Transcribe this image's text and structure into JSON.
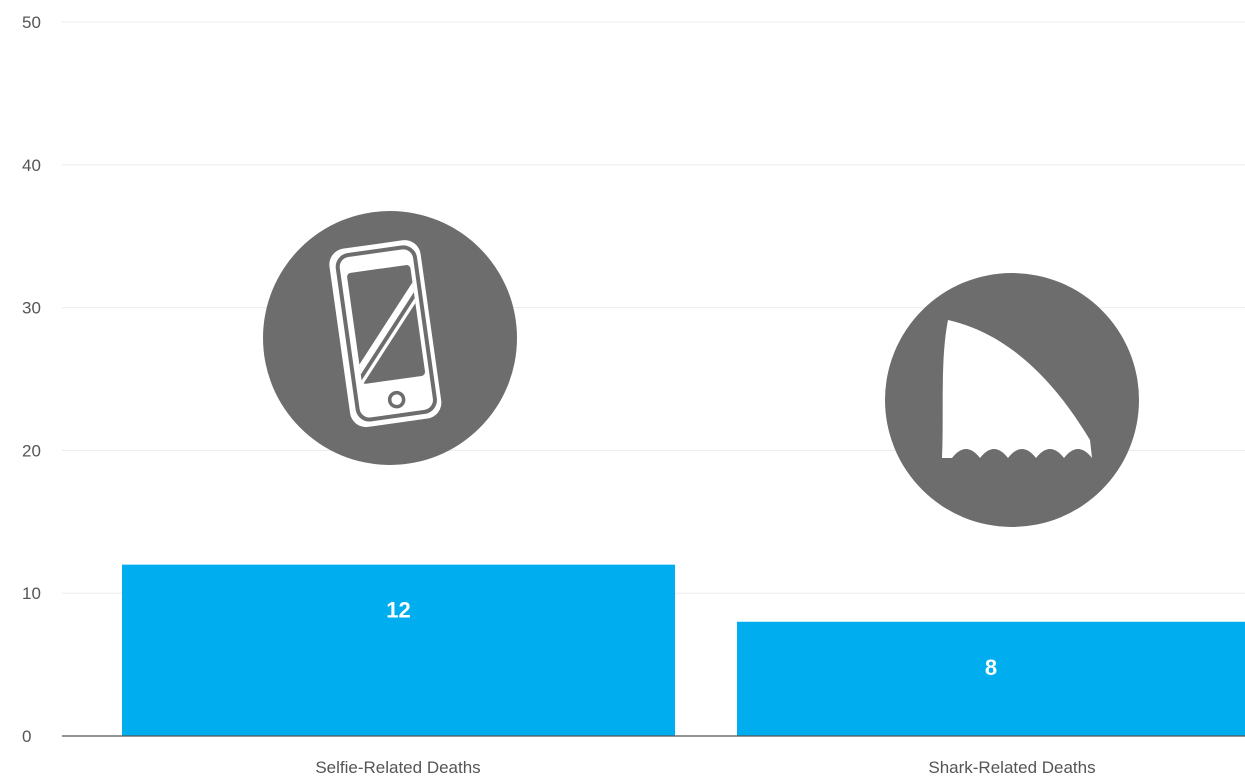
{
  "chart_data": {
    "type": "bar",
    "categories": [
      "Selfie-Related Deaths",
      "Shark-Related Deaths"
    ],
    "values": [
      12,
      8
    ],
    "data_labels": [
      "12",
      "8"
    ],
    "yticks": [
      "0",
      "10",
      "20",
      "30",
      "40",
      "50"
    ],
    "ylim": [
      0,
      50
    ],
    "grid": true,
    "legend": "none",
    "bar_color": "#00aeef",
    "icon_circle_color": "#6d6d6d",
    "icons": [
      "smartphone-icon",
      "shark-fin-icon"
    ]
  }
}
